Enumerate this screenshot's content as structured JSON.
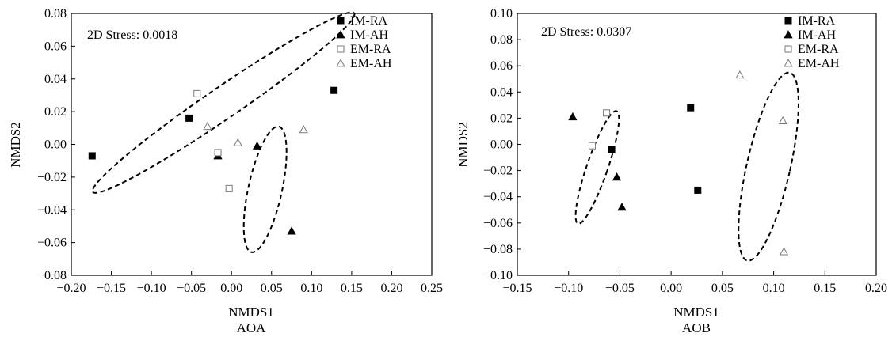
{
  "chart_data": [
    {
      "type": "scatter",
      "panel_label": "AOA",
      "xlabel": "NMDS1",
      "ylabel": "NMDS2",
      "stress_label": "2D Stress: 0.0018",
      "xlim": [
        -0.2,
        0.25
      ],
      "ylim": [
        -0.08,
        0.08
      ],
      "x_ticks": [
        -0.2,
        -0.15,
        -0.1,
        -0.05,
        0.0,
        0.05,
        0.1,
        0.15,
        0.2,
        0.25
      ],
      "x_tick_labels": [
        "−0.20",
        "−0.15",
        "−0.10",
        "−0.05",
        "0.00",
        "0.05",
        "0.10",
        "0.15",
        "0.20",
        "0.25"
      ],
      "y_ticks": [
        -0.08,
        -0.06,
        -0.04,
        -0.02,
        0.0,
        0.02,
        0.04,
        0.06,
        0.08
      ],
      "y_tick_labels": [
        "−0.08",
        "−0.06",
        "−0.04",
        "−0.02",
        "0.00",
        "0.02",
        "0.04",
        "0.06",
        "0.08"
      ],
      "legend_position": "top-right",
      "series": [
        {
          "name": "IM-RA",
          "marker": "square-filled",
          "points": [
            [
              -0.174,
              -0.007
            ],
            [
              -0.053,
              0.016
            ],
            [
              0.128,
              0.033
            ]
          ]
        },
        {
          "name": "IM-AH",
          "marker": "triangle-filled",
          "points": [
            [
              -0.017,
              -0.007
            ],
            [
              0.032,
              -0.001
            ],
            [
              0.075,
              -0.053
            ]
          ]
        },
        {
          "name": "EM-RA",
          "marker": "square-open",
          "points": [
            [
              -0.043,
              0.031
            ],
            [
              -0.017,
              -0.005
            ],
            [
              -0.003,
              -0.027
            ]
          ]
        },
        {
          "name": "EM-AH",
          "marker": "triangle-open",
          "points": [
            [
              -0.03,
              0.011
            ],
            [
              0.008,
              0.001
            ],
            [
              0.09,
              0.009
            ]
          ]
        }
      ],
      "ellipses": [
        {
          "cx": -0.01,
          "cy": 0.0255,
          "rx": 0.172,
          "ry": 0.01,
          "rotation_deg": 18.5
        },
        {
          "cx": 0.042,
          "cy": -0.0275,
          "rx": 0.042,
          "ry": 0.017,
          "rotation_deg": 66
        }
      ]
    },
    {
      "type": "scatter",
      "panel_label": "AOB",
      "xlabel": "NMDS1",
      "ylabel": "NMDS2",
      "stress_label": "2D Stress: 0.0307",
      "xlim": [
        -0.15,
        0.2
      ],
      "ylim": [
        -0.1,
        0.1
      ],
      "x_ticks": [
        -0.15,
        -0.1,
        -0.05,
        0.0,
        0.05,
        0.1,
        0.15,
        0.2
      ],
      "x_tick_labels": [
        "−0.15",
        "−0.10",
        "−0.05",
        "0.00",
        "0.05",
        "0.10",
        "0.15",
        "0.20"
      ],
      "y_ticks": [
        -0.1,
        -0.08,
        -0.06,
        -0.04,
        -0.02,
        0.0,
        0.02,
        0.04,
        0.06,
        0.08,
        0.1
      ],
      "y_tick_labels": [
        "−0.10",
        "−0.08",
        "−0.06",
        "−0.04",
        "−0.02",
        "0.00",
        "0.02",
        "0.04",
        "0.06",
        "0.08",
        "0.10"
      ],
      "legend_position": "top-right",
      "series": [
        {
          "name": "IM-RA",
          "marker": "square-filled",
          "points": [
            [
              -0.058,
              -0.004
            ],
            [
              0.019,
              0.028
            ],
            [
              0.026,
              -0.035
            ]
          ]
        },
        {
          "name": "IM-AH",
          "marker": "triangle-filled",
          "points": [
            [
              -0.096,
              0.021
            ],
            [
              -0.053,
              -0.025
            ],
            [
              -0.048,
              -0.048
            ]
          ]
        },
        {
          "name": "EM-RA",
          "marker": "square-open",
          "points": [
            [
              -0.077,
              -0.001
            ],
            [
              -0.063,
              0.024
            ]
          ]
        },
        {
          "name": "EM-AH",
          "marker": "triangle-open",
          "points": [
            [
              0.067,
              0.053
            ],
            [
              0.109,
              0.018
            ],
            [
              0.11,
              -0.082
            ]
          ]
        }
      ],
      "ellipses": [
        {
          "cx": -0.072,
          "cy": -0.0175,
          "rx": 0.01,
          "ry": 0.046,
          "rotation_deg": -15
        },
        {
          "cx": 0.095,
          "cy": -0.017,
          "rx": 0.021,
          "ry": 0.074,
          "rotation_deg": -10
        }
      ]
    }
  ]
}
